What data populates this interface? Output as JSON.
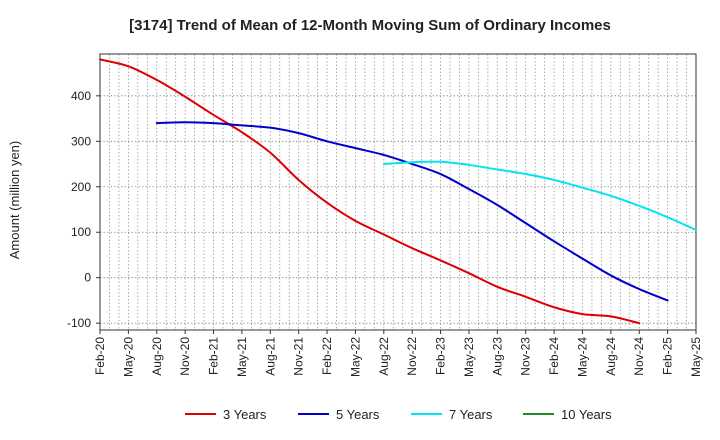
{
  "chart_data": {
    "type": "line",
    "title": "[3174]  Trend of Mean of 12-Month Moving Sum of Ordinary Incomes",
    "xlabel": "",
    "ylabel": "Amount (million yen)",
    "ylim": [
      -115,
      492
    ],
    "yticks": [
      -100,
      0,
      100,
      200,
      300,
      400
    ],
    "x_labels": [
      "Feb-20",
      "May-20",
      "Aug-20",
      "Nov-20",
      "Feb-21",
      "May-21",
      "Aug-21",
      "Nov-21",
      "Feb-22",
      "May-22",
      "Aug-22",
      "Nov-22",
      "Feb-23",
      "May-23",
      "Aug-23",
      "Nov-23",
      "Feb-24",
      "May-24",
      "Aug-24",
      "Nov-24",
      "Feb-25",
      "May-25"
    ],
    "grid": true,
    "legend_position": "bottom",
    "series": [
      {
        "name": "3 Years",
        "color": "#dd0000",
        "start_index": 0,
        "values": [
          480,
          465,
          435,
          398,
          358,
          320,
          275,
          215,
          165,
          125,
          95,
          65,
          38,
          10,
          -20,
          -42,
          -65,
          -80,
          -85,
          -100
        ]
      },
      {
        "name": "5 Years",
        "color": "#0000cc",
        "start_index": 2,
        "values": [
          340,
          342,
          340,
          335,
          330,
          318,
          300,
          285,
          270,
          250,
          228,
          195,
          160,
          120,
          80,
          42,
          5,
          -25,
          -50
        ]
      },
      {
        "name": "7 Years",
        "color": "#00e5ee",
        "start_index": 10,
        "values": [
          250,
          254,
          255,
          248,
          238,
          228,
          215,
          198,
          180,
          158,
          133,
          105
        ]
      },
      {
        "name": "10 Years",
        "color": "#228b22",
        "start_index": 0,
        "values": []
      }
    ]
  }
}
